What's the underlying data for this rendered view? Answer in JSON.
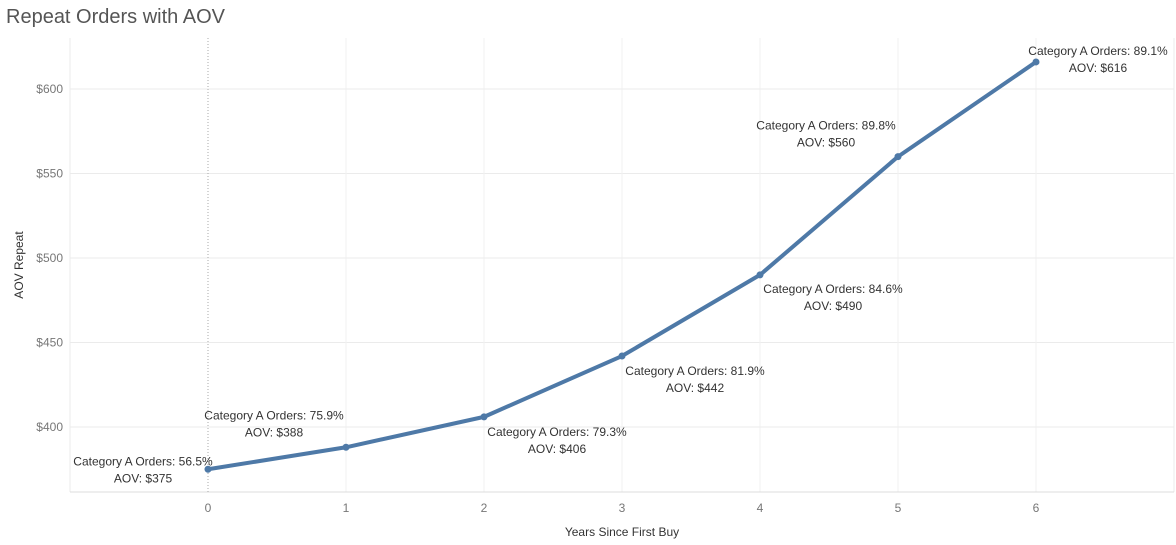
{
  "chart_data": {
    "type": "line",
    "title": "Repeat Orders with AOV",
    "xlabel": "Years Since First Buy",
    "ylabel": "AOV Repeat",
    "x": [
      0,
      1,
      2,
      3,
      4,
      5,
      6
    ],
    "series": [
      {
        "values": [
          375,
          388,
          406,
          442,
          490,
          560,
          616
        ],
        "category_a_orders": [
          "56.5%",
          "75.9%",
          "79.3%",
          "81.9%",
          "84.6%",
          "89.8%",
          "89.1%"
        ]
      }
    ],
    "x_ticks": [
      "0",
      "1",
      "2",
      "3",
      "4",
      "5",
      "6"
    ],
    "y_ticks": [
      {
        "value": 400,
        "label": "$400"
      },
      {
        "value": 450,
        "label": "$450"
      },
      {
        "value": 500,
        "label": "$500"
      },
      {
        "value": 550,
        "label": "$550"
      },
      {
        "value": 600,
        "label": "$600"
      }
    ],
    "point_labels": [
      {
        "line1": "Category A Orders: 56.5%",
        "line2": "AOV: $375"
      },
      {
        "line1": "Category A Orders: 75.9%",
        "line2": "AOV: $388"
      },
      {
        "line1": "Category A Orders: 79.3%",
        "line2": "AOV: $406"
      },
      {
        "line1": "Category A Orders: 81.9%",
        "line2": "AOV: $442"
      },
      {
        "line1": "Category A Orders: 84.6%",
        "line2": "AOV: $490"
      },
      {
        "line1": "Category A Orders: 89.8%",
        "line2": "AOV: $560"
      },
      {
        "line1": "Category A Orders: 89.1%",
        "line2": "AOV: $616"
      }
    ],
    "xlim": [
      -1,
      7
    ],
    "ylim": [
      365,
      630
    ],
    "grid": true,
    "line_color": "#4e79a7"
  }
}
